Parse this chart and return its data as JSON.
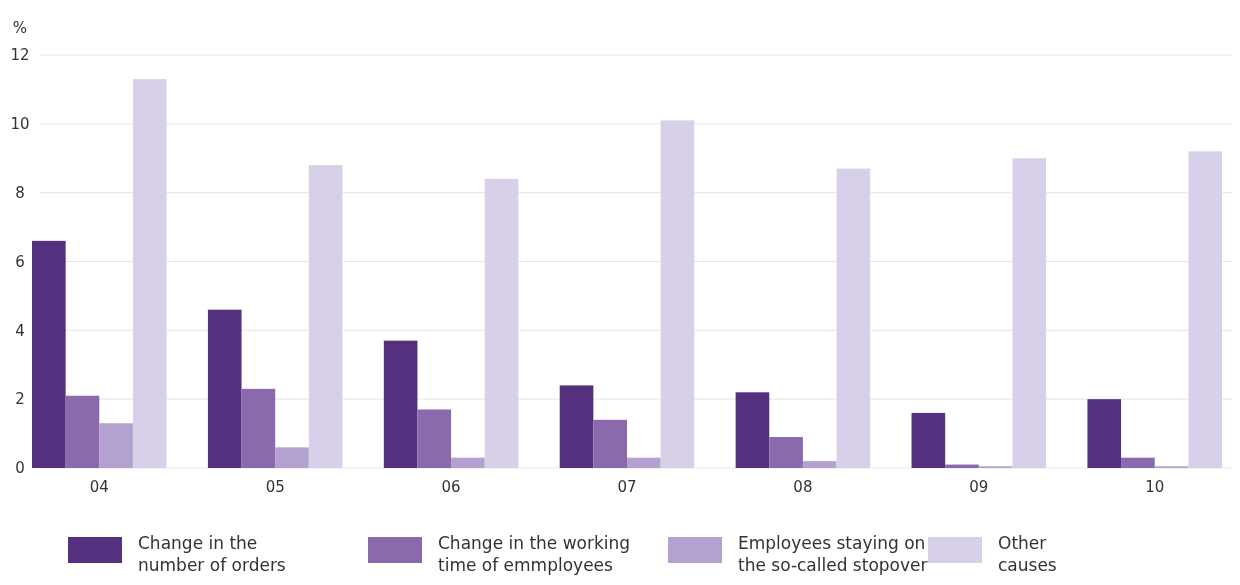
{
  "chart_data": {
    "type": "bar",
    "ylabel": "%",
    "categories": [
      "04",
      "05",
      "06",
      "07",
      "08",
      "09",
      "10"
    ],
    "series": [
      {
        "name": "Change in the number of orders",
        "color": "#55307f",
        "values": [
          6.6,
          4.6,
          3.7,
          2.4,
          2.2,
          1.6,
          2.0
        ]
      },
      {
        "name": "Change in the working time of emmployees",
        "color": "#8a6aad",
        "values": [
          2.1,
          2.3,
          1.7,
          1.4,
          0.9,
          0.1,
          0.3
        ]
      },
      {
        "name": "Employees staying on the so-called stopover",
        "color": "#b3a1d0",
        "values": [
          1.3,
          0.6,
          0.3,
          0.3,
          0.2,
          0.05,
          0.05
        ]
      },
      {
        "name": "Other causes",
        "color": "#d8d0e8",
        "values": [
          11.3,
          8.8,
          8.4,
          10.1,
          8.7,
          9.0,
          9.2
        ]
      }
    ],
    "ylim": [
      0,
      12
    ],
    "yticks": [
      0,
      2,
      4,
      6,
      8,
      10,
      12
    ],
    "grid": "y",
    "legend": "bottom"
  }
}
